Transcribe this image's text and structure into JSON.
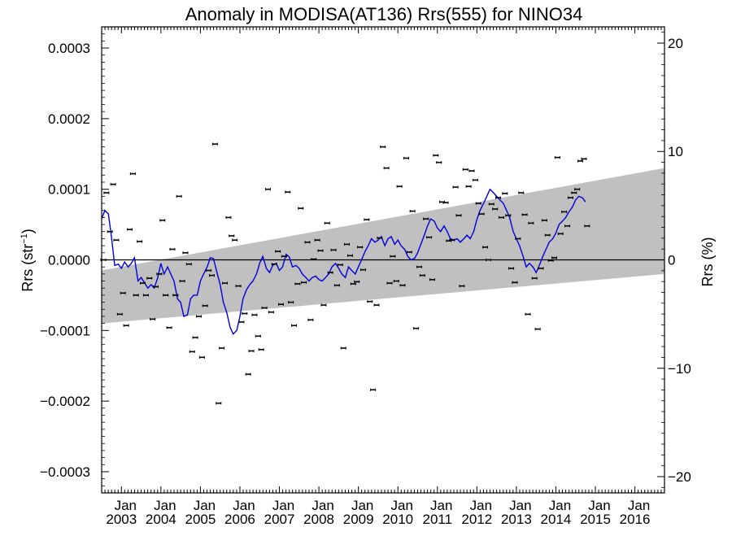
{
  "chart_data": {
    "type": "scatter",
    "title": "Anomaly in MODISA(AT136) Rrs(555) for NINO34",
    "ylabel_left_main": "Rrs (str",
    "ylabel_left_sup": "−1",
    "ylabel_left_close": ")",
    "ylabel_right": "Rrs (%)",
    "ylim_left": [
      -0.00033,
      0.00033
    ],
    "ylim_right": [
      -21.5,
      21.5
    ],
    "yticks_left": [
      {
        "value": 0.0003,
        "label": "0.0003"
      },
      {
        "value": 0.0002,
        "label": "0.0002"
      },
      {
        "value": 0.0001,
        "label": "0.0001"
      },
      {
        "value": 0.0,
        "label": "0.0000"
      },
      {
        "value": -0.0001,
        "label": "−0.0001"
      },
      {
        "value": -0.0002,
        "label": "−0.0002"
      },
      {
        "value": -0.0003,
        "label": "−0.0003"
      }
    ],
    "yticks_right": [
      {
        "value": 20,
        "label": "20"
      },
      {
        "value": 10,
        "label": "10"
      },
      {
        "value": 0,
        "label": "0"
      },
      {
        "value": -10,
        "label": "−10"
      },
      {
        "value": -20,
        "label": "−20"
      }
    ],
    "xlim": [
      2002.5,
      2016.75
    ],
    "xticks": [
      {
        "value": 2003.0,
        "month": "Jan",
        "year": "2003"
      },
      {
        "value": 2004.0,
        "month": "Jan",
        "year": "2004"
      },
      {
        "value": 2005.0,
        "month": "Jan",
        "year": "2005"
      },
      {
        "value": 2006.0,
        "month": "Jan",
        "year": "2006"
      },
      {
        "value": 2007.0,
        "month": "Jan",
        "year": "2007"
      },
      {
        "value": 2008.0,
        "month": "Jan",
        "year": "2008"
      },
      {
        "value": 2009.0,
        "month": "Jan",
        "year": "2009"
      },
      {
        "value": 2010.0,
        "month": "Jan",
        "year": "2010"
      },
      {
        "value": 2011.0,
        "month": "Jan",
        "year": "2011"
      },
      {
        "value": 2012.0,
        "month": "Jan",
        "year": "2012"
      },
      {
        "value": 2013.0,
        "month": "Jan",
        "year": "2013"
      },
      {
        "value": 2014.0,
        "month": "Jan",
        "year": "2014"
      },
      {
        "value": 2015.0,
        "month": "Jan",
        "year": "2015"
      },
      {
        "value": 2016.0,
        "month": "Jan",
        "year": "2016"
      }
    ],
    "band": {
      "color": "#c0c0c0",
      "upper": [
        [
          2002.5,
          -1.5e-05
        ],
        [
          2016.75,
          0.00013
        ]
      ],
      "lower": [
        [
          2002.5,
          -9e-05
        ],
        [
          2016.75,
          -2e-05
        ]
      ]
    },
    "zero_line": 0,
    "points_color": "#000000",
    "line_color": "#0000dd",
    "points": [
      [
        2002.54,
        0.0
      ],
      [
        2002.62,
        9.5e-05
      ],
      [
        2002.71,
        4e-05
      ],
      [
        2002.79,
        0.000107
      ],
      [
        2002.87,
        2.8e-05
      ],
      [
        2002.96,
        -7.7e-05
      ],
      [
        2003.04,
        -4.7e-05
      ],
      [
        2003.12,
        -9.3e-05
      ],
      [
        2003.21,
        4.3e-05
      ],
      [
        2003.29,
        0.000122
      ],
      [
        2003.37,
        -5e-05
      ],
      [
        2003.46,
        2.6e-05
      ],
      [
        2003.54,
        -3.3e-05
      ],
      [
        2003.62,
        -5e-05
      ],
      [
        2003.71,
        -2.6e-05
      ],
      [
        2003.79,
        -8.4e-05
      ],
      [
        2003.87,
        -3.8e-05
      ],
      [
        2003.96,
        -2e-05
      ],
      [
        2004.04,
        5.6e-05
      ],
      [
        2004.12,
        -5e-05
      ],
      [
        2004.21,
        -9.6e-05
      ],
      [
        2004.29,
        1.5e-05
      ],
      [
        2004.37,
        -5e-05
      ],
      [
        2004.46,
        9e-05
      ],
      [
        2004.54,
        -3e-05
      ],
      [
        2004.62,
        1e-05
      ],
      [
        2004.71,
        -6e-06
      ],
      [
        2004.79,
        -0.00013
      ],
      [
        2004.87,
        -0.00011
      ],
      [
        2004.96,
        -8e-05
      ],
      [
        2005.04,
        -0.000138
      ],
      [
        2005.12,
        -6.5e-05
      ],
      [
        2005.21,
        -1.5e-05
      ],
      [
        2005.29,
        -2.2e-05
      ],
      [
        2005.37,
        0.000164
      ],
      [
        2005.46,
        -0.000203
      ],
      [
        2005.54,
        -0.000125
      ],
      [
        2005.62,
        -3.3e-05
      ],
      [
        2005.71,
        6e-05
      ],
      [
        2005.79,
        3.4e-05
      ],
      [
        2005.87,
        2.8e-05
      ],
      [
        2005.96,
        -3.7e-05
      ],
      [
        2006.04,
        -8.8e-05
      ],
      [
        2006.12,
        -7.6e-05
      ],
      [
        2006.21,
        -0.000162
      ],
      [
        2006.29,
        -0.000129
      ],
      [
        2006.37,
        -7.8e-05
      ],
      [
        2006.46,
        -0.000108
      ],
      [
        2006.54,
        -0.000127
      ],
      [
        2006.62,
        -6.8e-05
      ],
      [
        2006.71,
        0.0001
      ],
      [
        2006.79,
        -7.4e-05
      ],
      [
        2006.87,
        -6e-06
      ],
      [
        2006.96,
        1.2e-05
      ],
      [
        2007.04,
        -6.3e-05
      ],
      [
        2007.12,
        5e-06
      ],
      [
        2007.21,
        9.6e-05
      ],
      [
        2007.29,
        -6e-05
      ],
      [
        2007.37,
        -9.3e-05
      ],
      [
        2007.46,
        -3.4e-05
      ],
      [
        2007.54,
        7.3e-05
      ],
      [
        2007.62,
        -3.2e-05
      ],
      [
        2007.71,
        2.5e-05
      ],
      [
        2007.79,
        -8.5e-05
      ],
      [
        2007.87,
        1e-06
      ],
      [
        2007.96,
        2.8e-05
      ],
      [
        2008.04,
        1.3e-05
      ],
      [
        2008.12,
        -6.4e-05
      ],
      [
        2008.21,
        5.2e-05
      ],
      [
        2008.29,
        -1.8e-05
      ],
      [
        2008.37,
        1.4e-05
      ],
      [
        2008.46,
        -3.6e-05
      ],
      [
        2008.54,
        -7e-06
      ],
      [
        2008.62,
        -0.000125
      ],
      [
        2008.71,
        2.2e-05
      ],
      [
        2008.79,
        6e-06
      ],
      [
        2008.87,
        -3.4e-05
      ],
      [
        2008.96,
        -3.1e-05
      ],
      [
        2009.04,
        1.8e-05
      ],
      [
        2009.12,
        -1.4e-05
      ],
      [
        2009.21,
        5.7e-05
      ],
      [
        2009.29,
        -5.9e-05
      ],
      [
        2009.37,
        -0.000184
      ],
      [
        2009.46,
        -6.4e-05
      ],
      [
        2009.54,
        3.1e-05
      ],
      [
        2009.62,
        0.00016
      ],
      [
        2009.71,
        0.00013
      ],
      [
        2009.79,
        -3.3e-05
      ],
      [
        2009.87,
        5e-06
      ],
      [
        2009.96,
        -3e-05
      ],
      [
        2010.04,
        0.000104
      ],
      [
        2010.12,
        -3.6e-05
      ],
      [
        2010.21,
        0.000144
      ],
      [
        2010.29,
        1.1e-05
      ],
      [
        2010.37,
        6.9e-05
      ],
      [
        2010.46,
        -9.7e-05
      ],
      [
        2010.54,
        -1e-05
      ],
      [
        2010.62,
        -2.2e-05
      ],
      [
        2010.71,
        5.8e-05
      ],
      [
        2010.79,
        3.2e-05
      ],
      [
        2010.87,
        -2.8e-05
      ],
      [
        2010.96,
        0.000148
      ],
      [
        2011.04,
        0.000138
      ],
      [
        2011.12,
        8.2e-05
      ],
      [
        2011.21,
        8.1e-05
      ],
      [
        2011.29,
        2.7e-05
      ],
      [
        2011.37,
        2.8e-05
      ],
      [
        2011.46,
        0.000103
      ],
      [
        2011.54,
        6.3e-05
      ],
      [
        2011.62,
        -3.7e-05
      ],
      [
        2011.71,
        0.000128
      ],
      [
        2011.79,
        0.000104
      ],
      [
        2011.87,
        0.000126
      ],
      [
        2011.96,
        0.000113
      ],
      [
        2012.04,
        8e-05
      ],
      [
        2012.12,
        6.5e-05
      ],
      [
        2012.21,
        1.8e-05
      ],
      [
        2012.29,
        0.0
      ],
      [
        2012.37,
        7.9e-05
      ],
      [
        2012.46,
        7.2e-05
      ],
      [
        2012.54,
        8.8e-05
      ],
      [
        2012.62,
        6e-05
      ],
      [
        2012.71,
        9.4e-05
      ],
      [
        2012.79,
        6.3e-05
      ],
      [
        2012.87,
        -1.2e-05
      ],
      [
        2012.96,
        -3.2e-05
      ],
      [
        2013.04,
        3e-05
      ],
      [
        2013.12,
        9.5e-05
      ],
      [
        2013.21,
        6.4e-05
      ],
      [
        2013.29,
        -7.7e-05
      ],
      [
        2013.37,
        5.2e-05
      ],
      [
        2013.46,
        -2.6e-05
      ],
      [
        2013.54,
        -9.8e-05
      ],
      [
        2013.62,
        -1.2e-05
      ],
      [
        2013.71,
        5.6e-05
      ],
      [
        2013.79,
        3.5e-05
      ],
      [
        2013.87,
        -1e-06
      ],
      [
        2013.96,
        3e-06
      ],
      [
        2014.04,
        0.000145
      ],
      [
        2014.12,
        3.7e-05
      ],
      [
        2014.21,
        6.8e-05
      ],
      [
        2014.29,
        4.8e-05
      ],
      [
        2014.37,
        8.8e-05
      ],
      [
        2014.46,
        9.5e-05
      ],
      [
        2014.54,
        0.0001
      ],
      [
        2014.62,
        0.00014
      ],
      [
        2014.71,
        0.000143
      ],
      [
        2014.79,
        4.8e-05
      ]
    ],
    "smooth": [
      [
        2002.5,
        5.8e-05
      ],
      [
        2002.58,
        7e-05
      ],
      [
        2002.67,
        6.5e-05
      ],
      [
        2002.75,
        3.2e-05
      ],
      [
        2002.83,
        -8e-06
      ],
      [
        2002.92,
        -6e-06
      ],
      [
        2003.0,
        -1.2e-05
      ],
      [
        2003.08,
        -3e-06
      ],
      [
        2003.17,
        -1e-05
      ],
      [
        2003.25,
        -5e-06
      ],
      [
        2003.33,
        3e-06
      ],
      [
        2003.42,
        -3e-05
      ],
      [
        2003.5,
        -2.5e-05
      ],
      [
        2003.58,
        -3.2e-05
      ],
      [
        2003.67,
        -4e-05
      ],
      [
        2003.75,
        -3.5e-05
      ],
      [
        2003.83,
        -4e-05
      ],
      [
        2003.92,
        -2.5e-05
      ],
      [
        2004.0,
        -5e-06
      ],
      [
        2004.08,
        -2e-05
      ],
      [
        2004.17,
        -1e-05
      ],
      [
        2004.25,
        -2e-05
      ],
      [
        2004.33,
        -3e-05
      ],
      [
        2004.42,
        -5.5e-05
      ],
      [
        2004.5,
        -6e-05
      ],
      [
        2004.58,
        -8e-05
      ],
      [
        2004.67,
        -7.8e-05
      ],
      [
        2004.75,
        -5.5e-05
      ],
      [
        2004.83,
        -5e-05
      ],
      [
        2004.92,
        -5e-05
      ],
      [
        2005.0,
        -3e-05
      ],
      [
        2005.08,
        -2e-05
      ],
      [
        2005.17,
        -1e-05
      ],
      [
        2005.25,
        3e-06
      ],
      [
        2005.33,
        2e-06
      ],
      [
        2005.42,
        -1.8e-05
      ],
      [
        2005.5,
        -3.5e-05
      ],
      [
        2005.58,
        -6e-05
      ],
      [
        2005.67,
        -7.5e-05
      ],
      [
        2005.75,
        -9.5e-05
      ],
      [
        2005.83,
        -0.000105
      ],
      [
        2005.92,
        -0.0001
      ],
      [
        2006.0,
        -8e-05
      ],
      [
        2006.08,
        -5.5e-05
      ],
      [
        2006.17,
        -4.2e-05
      ],
      [
        2006.25,
        -3.5e-05
      ],
      [
        2006.33,
        -3e-05
      ],
      [
        2006.42,
        -2e-05
      ],
      [
        2006.5,
        -5e-06
      ],
      [
        2006.58,
        5e-06
      ],
      [
        2006.67,
        -1.2e-05
      ],
      [
        2006.75,
        -1.8e-05
      ],
      [
        2006.83,
        -8e-06
      ],
      [
        2006.92,
        -5e-06
      ],
      [
        2007.0,
        -1.5e-05
      ],
      [
        2007.08,
        -1e-05
      ],
      [
        2007.17,
        8e-06
      ],
      [
        2007.25,
        4e-06
      ],
      [
        2007.33,
        -1e-05
      ],
      [
        2007.42,
        -8e-06
      ],
      [
        2007.5,
        -1.2e-05
      ],
      [
        2007.58,
        -2e-05
      ],
      [
        2007.67,
        -2.5e-05
      ],
      [
        2007.75,
        -3e-05
      ],
      [
        2007.83,
        -2.5e-05
      ],
      [
        2007.92,
        -2.3e-05
      ],
      [
        2008.0,
        -2.8e-05
      ],
      [
        2008.08,
        -3e-05
      ],
      [
        2008.17,
        -2.5e-05
      ],
      [
        2008.25,
        -2e-05
      ],
      [
        2008.33,
        -1e-05
      ],
      [
        2008.42,
        -5e-06
      ],
      [
        2008.5,
        -1.2e-05
      ],
      [
        2008.58,
        -2e-05
      ],
      [
        2008.67,
        -2.5e-05
      ],
      [
        2008.75,
        -1e-05
      ],
      [
        2008.83,
        -1.5e-05
      ],
      [
        2008.92,
        -2e-05
      ],
      [
        2009.0,
        -1e-05
      ],
      [
        2009.08,
        0.0
      ],
      [
        2009.17,
        1.2e-05
      ],
      [
        2009.25,
        2e-05
      ],
      [
        2009.33,
        3e-05
      ],
      [
        2009.42,
        2.5e-05
      ],
      [
        2009.5,
        2.8e-05
      ],
      [
        2009.58,
        3.3e-05
      ],
      [
        2009.67,
        2e-05
      ],
      [
        2009.75,
        3e-05
      ],
      [
        2009.83,
        3.3e-05
      ],
      [
        2009.92,
        2.2e-05
      ],
      [
        2010.0,
        2.8e-05
      ],
      [
        2010.08,
        2e-05
      ],
      [
        2010.17,
        1.5e-05
      ],
      [
        2010.25,
        5e-06
      ],
      [
        2010.33,
        0.0
      ],
      [
        2010.42,
        2e-06
      ],
      [
        2010.5,
        1e-05
      ],
      [
        2010.58,
        2.2e-05
      ],
      [
        2010.67,
        3.5e-05
      ],
      [
        2010.75,
        4.8e-05
      ],
      [
        2010.83,
        5.8e-05
      ],
      [
        2010.92,
        5.5e-05
      ],
      [
        2011.0,
        4.5e-05
      ],
      [
        2011.08,
        4e-05
      ],
      [
        2011.17,
        4.8e-05
      ],
      [
        2011.25,
        4e-05
      ],
      [
        2011.33,
        3e-05
      ],
      [
        2011.42,
        2.8e-05
      ],
      [
        2011.5,
        3e-05
      ],
      [
        2011.58,
        2.5e-05
      ],
      [
        2011.67,
        3e-05
      ],
      [
        2011.75,
        3.5e-05
      ],
      [
        2011.83,
        3e-05
      ],
      [
        2011.92,
        4e-05
      ],
      [
        2012.0,
        5.7e-05
      ],
      [
        2012.08,
        7e-05
      ],
      [
        2012.17,
        8e-05
      ],
      [
        2012.25,
        9e-05
      ],
      [
        2012.33,
        0.0001
      ],
      [
        2012.42,
        9.5e-05
      ],
      [
        2012.5,
        9e-05
      ],
      [
        2012.58,
        8.5e-05
      ],
      [
        2012.67,
        8e-05
      ],
      [
        2012.75,
        7e-05
      ],
      [
        2012.83,
        6e-05
      ],
      [
        2012.92,
        4e-05
      ],
      [
        2013.0,
        3e-05
      ],
      [
        2013.08,
        2e-05
      ],
      [
        2013.17,
        5e-06
      ],
      [
        2013.25,
        -1e-05
      ],
      [
        2013.33,
        -5e-06
      ],
      [
        2013.42,
        -1e-05
      ],
      [
        2013.5,
        -1.8e-05
      ],
      [
        2013.58,
        -8e-06
      ],
      [
        2013.67,
        5e-06
      ],
      [
        2013.75,
        1.5e-05
      ],
      [
        2013.83,
        2.5e-05
      ],
      [
        2013.92,
        3e-05
      ],
      [
        2014.0,
        3.8e-05
      ],
      [
        2014.08,
        5e-05
      ],
      [
        2014.17,
        5.5e-05
      ],
      [
        2014.25,
        6e-05
      ],
      [
        2014.33,
        6.8e-05
      ],
      [
        2014.42,
        7.5e-05
      ],
      [
        2014.5,
        8.5e-05
      ],
      [
        2014.58,
        9e-05
      ],
      [
        2014.67,
        8.8e-05
      ],
      [
        2014.75,
        8.2e-05
      ]
    ]
  }
}
